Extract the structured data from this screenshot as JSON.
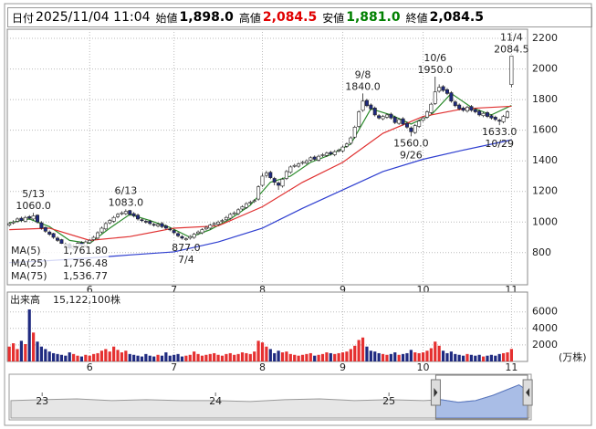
{
  "header": {
    "fields": [
      {
        "label": "日付",
        "value": "2025/11/04 11:04"
      },
      {
        "label": "始値",
        "value": {
          "value": 1898,
          "label": "1,898.0"
        }
      },
      {
        "label": "高値",
        "value": {
          "value": 2084.5,
          "label": "2,084.5"
        },
        "color": "#e00000"
      },
      {
        "label": "安値",
        "value": {
          "value": 1881,
          "label": "1,881.0"
        },
        "color": "#008000"
      },
      {
        "label": "終値",
        "value": {
          "value": 2084.5,
          "label": "2,084.5"
        }
      }
    ]
  },
  "chart_data": [
    {
      "type": "candlestick",
      "xlim": [
        -0.5,
        129
      ],
      "ylim": [
        590,
        2260
      ],
      "grid": true,
      "yticks": [
        800,
        1000,
        1200,
        1400,
        1600,
        1800,
        2000,
        2200
      ],
      "xticks": [
        {
          "value": 20,
          "label": "6"
        },
        {
          "value": 41,
          "label": "7"
        },
        {
          "value": 63,
          "label": "8"
        },
        {
          "value": 83,
          "label": "9"
        },
        {
          "value": 103,
          "label": "10"
        },
        {
          "value": 125,
          "label": "11"
        }
      ],
      "up_color": "#ffffff",
      "down_color": "#1f2a80",
      "open": [
        980,
        995,
        1005,
        1025,
        1005,
        1035,
        1020,
        1045,
        995,
        965,
        935,
        925,
        895,
        885,
        855,
        855,
        825,
        840,
        865,
        845,
        865,
        885,
        895,
        935,
        955,
        995,
        1005,
        1035,
        1055,
        1055,
        1075,
        1055,
        1045,
        1015,
        1005,
        1005,
        985,
        975,
        990,
        975,
        955,
        945,
        925,
        905,
        885,
        895,
        900,
        925,
        930,
        955,
        960,
        985,
        985,
        1005,
        1015,
        1025,
        1055,
        1055,
        1085,
        1095,
        1125,
        1135,
        1150,
        1240,
        1305,
        1325,
        1285,
        1255,
        1235,
        1285,
        1325,
        1365,
        1365,
        1385,
        1385,
        1405,
        1425,
        1405,
        1435,
        1435,
        1455,
        1440,
        1465,
        1465,
        1495,
        1515,
        1555,
        1625,
        1730,
        1795,
        1765,
        1745,
        1695,
        1675,
        1685,
        1705,
        1685,
        1645,
        1675,
        1645,
        1615,
        1585,
        1625,
        1665,
        1685,
        1715,
        1775,
        1855,
        1885,
        1865,
        1845,
        1785,
        1765,
        1745,
        1725,
        1755,
        1735,
        1725,
        1695,
        1715,
        1695,
        1685,
        1665,
        1655,
        1685,
        1898
      ],
      "high": [
        1000,
        1012,
        1030,
        1035,
        1040,
        1045,
        1060,
        1050,
        1005,
        970,
        945,
        930,
        905,
        890,
        865,
        860,
        855,
        870,
        875,
        880,
        890,
        910,
        940,
        970,
        1000,
        1020,
        1040,
        1060,
        1070,
        1083,
        1080,
        1065,
        1055,
        1025,
        1015,
        1015,
        995,
        995,
        1000,
        985,
        965,
        955,
        935,
        915,
        900,
        915,
        930,
        945,
        960,
        975,
        990,
        1000,
        1010,
        1020,
        1040,
        1060,
        1070,
        1090,
        1110,
        1130,
        1140,
        1150,
        1240,
        1320,
        1335,
        1335,
        1295,
        1265,
        1290,
        1340,
        1370,
        1380,
        1390,
        1400,
        1410,
        1430,
        1435,
        1440,
        1450,
        1460,
        1465,
        1470,
        1480,
        1500,
        1520,
        1560,
        1630,
        1730,
        1840,
        1805,
        1775,
        1755,
        1705,
        1700,
        1710,
        1715,
        1695,
        1680,
        1685,
        1655,
        1625,
        1640,
        1670,
        1690,
        1730,
        1780,
        1950,
        1900,
        1895,
        1875,
        1855,
        1795,
        1775,
        1755,
        1760,
        1765,
        1745,
        1735,
        1720,
        1725,
        1705,
        1695,
        1675,
        1700,
        1730,
        2084.5
      ],
      "low": [
        970,
        985,
        995,
        1000,
        998,
        1015,
        1010,
        990,
        950,
        930,
        910,
        890,
        870,
        850,
        840,
        820,
        815,
        830,
        840,
        835,
        855,
        875,
        885,
        925,
        945,
        985,
        995,
        1025,
        1045,
        1045,
        1040,
        1030,
        1010,
        1000,
        990,
        980,
        970,
        965,
        960,
        950,
        940,
        920,
        900,
        885,
        877,
        885,
        890,
        915,
        920,
        945,
        950,
        975,
        975,
        995,
        1005,
        1015,
        1045,
        1045,
        1075,
        1085,
        1115,
        1125,
        1140,
        1230,
        1290,
        1280,
        1240,
        1210,
        1225,
        1275,
        1315,
        1355,
        1355,
        1375,
        1375,
        1395,
        1400,
        1395,
        1425,
        1425,
        1435,
        1430,
        1455,
        1455,
        1485,
        1505,
        1545,
        1615,
        1720,
        1750,
        1730,
        1690,
        1670,
        1665,
        1675,
        1670,
        1640,
        1635,
        1630,
        1610,
        1560,
        1575,
        1615,
        1655,
        1675,
        1705,
        1765,
        1845,
        1850,
        1830,
        1780,
        1750,
        1730,
        1720,
        1715,
        1720,
        1710,
        1690,
        1685,
        1680,
        1670,
        1660,
        1633,
        1645,
        1675,
        1881
      ],
      "close": [
        990,
        1000,
        1020,
        1010,
        1030,
        1025,
        1040,
        1000,
        960,
        940,
        920,
        900,
        880,
        860,
        850,
        830,
        845,
        860,
        850,
        870,
        880,
        900,
        930,
        960,
        990,
        1010,
        1030,
        1050,
        1060,
        1070,
        1050,
        1040,
        1020,
        1010,
        1000,
        990,
        980,
        985,
        970,
        960,
        950,
        930,
        910,
        895,
        890,
        905,
        920,
        935,
        950,
        965,
        980,
        990,
        1000,
        1010,
        1030,
        1050,
        1060,
        1080,
        1100,
        1120,
        1130,
        1140,
        1230,
        1300,
        1320,
        1290,
        1260,
        1240,
        1280,
        1330,
        1360,
        1370,
        1380,
        1390,
        1400,
        1420,
        1410,
        1430,
        1440,
        1450,
        1445,
        1460,
        1470,
        1490,
        1510,
        1550,
        1620,
        1720,
        1790,
        1760,
        1740,
        1700,
        1680,
        1690,
        1700,
        1680,
        1650,
        1670,
        1640,
        1620,
        1590,
        1630,
        1660,
        1680,
        1720,
        1770,
        1850,
        1880,
        1860,
        1840,
        1790,
        1760,
        1740,
        1730,
        1750,
        1730,
        1720,
        1700,
        1710,
        1690,
        1680,
        1670,
        1660,
        1690,
        1720,
        2084.5
      ],
      "moving_averages": [
        {
          "name": "MA(5)",
          "color": "#2a8a2a",
          "legend_value": {
            "value": 1761.8,
            "label": "1,761.80"
          },
          "x": [
            0,
            5,
            10,
            15,
            20,
            25,
            30,
            35,
            40,
            45,
            50,
            55,
            60,
            65,
            70,
            75,
            80,
            85,
            90,
            95,
            100,
            105,
            110,
            115,
            120,
            125
          ],
          "values": [
            995,
            1020,
            970,
            880,
            860,
            960,
            1050,
            1010,
            965,
            900,
            950,
            1020,
            1110,
            1260,
            1300,
            1390,
            1440,
            1510,
            1740,
            1700,
            1640,
            1700,
            1840,
            1750,
            1700,
            1761.8
          ]
        },
        {
          "name": "MA(25)",
          "color": "#e03030",
          "legend_value": {
            "value": 1756.48,
            "label": "1,756.48"
          },
          "x": [
            0,
            10,
            20,
            30,
            41,
            52,
            63,
            73,
            83,
            93,
            103,
            113,
            125
          ],
          "values": [
            950,
            960,
            880,
            905,
            960,
            975,
            1100,
            1260,
            1390,
            1580,
            1690,
            1740,
            1756.48
          ]
        },
        {
          "name": "MA(75)",
          "color": "#2f3fd0",
          "legend_value": {
            "value": 1536.77,
            "label": "1,536.77"
          },
          "x": [
            0,
            10,
            20,
            30,
            41,
            52,
            63,
            73,
            83,
            93,
            103,
            113,
            125
          ],
          "values": [
            735,
            748,
            765,
            785,
            805,
            870,
            960,
            1090,
            1210,
            1330,
            1410,
            1470,
            1536.77
          ]
        }
      ],
      "annotations": [
        {
          "date": "5/13",
          "index": 6,
          "value": {
            "value": 1060,
            "label": "1060.0"
          },
          "side": "above"
        },
        {
          "date": "6/13",
          "index": 29,
          "value": {
            "value": 1083,
            "label": "1083.0"
          },
          "side": "above"
        },
        {
          "date": "7/4",
          "index": 44,
          "value": {
            "value": 877,
            "label": "877.0"
          },
          "side": "below"
        },
        {
          "date": "9/8",
          "index": 88,
          "value": {
            "value": 1840,
            "label": "1840.0"
          },
          "side": "above"
        },
        {
          "date": "9/26",
          "index": 100,
          "value": {
            "value": 1560,
            "label": "1560.0"
          },
          "side": "below"
        },
        {
          "date": "10/6",
          "index": 106,
          "value": {
            "value": 1950,
            "label": "1950.0"
          },
          "side": "above"
        },
        {
          "date": "10/29",
          "index": 122,
          "value": {
            "value": 1633,
            "label": "1633.0"
          },
          "side": "below"
        },
        {
          "date": "11/4",
          "index": 125,
          "value": {
            "value": 2084.5,
            "label": "2084.5"
          },
          "side": "above"
        }
      ]
    },
    {
      "type": "bar",
      "title": "出来高",
      "total": {
        "value": 15122100,
        "label": "15,122,100株"
      },
      "unit": "(万株)",
      "ylim": [
        0,
        8400
      ],
      "yticks": [
        2000,
        4000,
        6000
      ],
      "up_color": "#e53030",
      "down_color": "#1f2a80",
      "values": [
        1800,
        2200,
        1500,
        2500,
        2100,
        6300,
        3500,
        2400,
        1800,
        1500,
        1200,
        1000,
        900,
        800,
        700,
        1100,
        900,
        700,
        600,
        800,
        700,
        900,
        1000,
        1300,
        1500,
        1200,
        1800,
        1400,
        1100,
        1300,
        900,
        800,
        700,
        600,
        900,
        700,
        600,
        800,
        700,
        1100,
        700,
        800,
        900,
        600,
        700,
        800,
        1200,
        900,
        700,
        800,
        900,
        1000,
        800,
        700,
        900,
        1000,
        800,
        900,
        1100,
        1000,
        900,
        1200,
        2500,
        2300,
        1800,
        1500,
        1000,
        1300,
        1100,
        1200,
        900,
        800,
        700,
        800,
        900,
        1000,
        700,
        800,
        900,
        1100,
        1000,
        900,
        1000,
        1100,
        1200,
        1500,
        1900,
        2600,
        2900,
        1800,
        1300,
        1200,
        1000,
        900,
        800,
        900,
        1100,
        800,
        900,
        1000,
        1400,
        1100,
        1000,
        1100,
        1300,
        1600,
        2400,
        1900,
        1300,
        1000,
        1200,
        900,
        800,
        700,
        900,
        800,
        700,
        800,
        600,
        700,
        800,
        700,
        900,
        1000,
        1100,
        1512.21
      ]
    },
    {
      "type": "area",
      "xlim": [
        2022.82,
        2025.81
      ],
      "ylim": [
        0,
        2300
      ],
      "xticks": [
        {
          "value": 2023,
          "label": "23"
        },
        {
          "value": 2024,
          "label": "24"
        },
        {
          "value": 2025,
          "label": "25"
        }
      ],
      "selection": [
        2025.27,
        2025.8
      ],
      "x": [
        2022.82,
        2023.0,
        2023.2,
        2023.4,
        2023.6,
        2023.8,
        2024.0,
        2024.2,
        2024.4,
        2024.6,
        2024.8,
        2025.0,
        2025.2,
        2025.3,
        2025.4,
        2025.5,
        2025.6,
        2025.7,
        2025.75,
        2025.78,
        2025.81
      ],
      "values": [
        1000,
        1050,
        1100,
        1000,
        1050,
        1000,
        1000,
        950,
        1050,
        1100,
        1000,
        1050,
        1000,
        1050,
        900,
        1000,
        1300,
        1700,
        1900,
        1700,
        2084.5
      ]
    }
  ]
}
